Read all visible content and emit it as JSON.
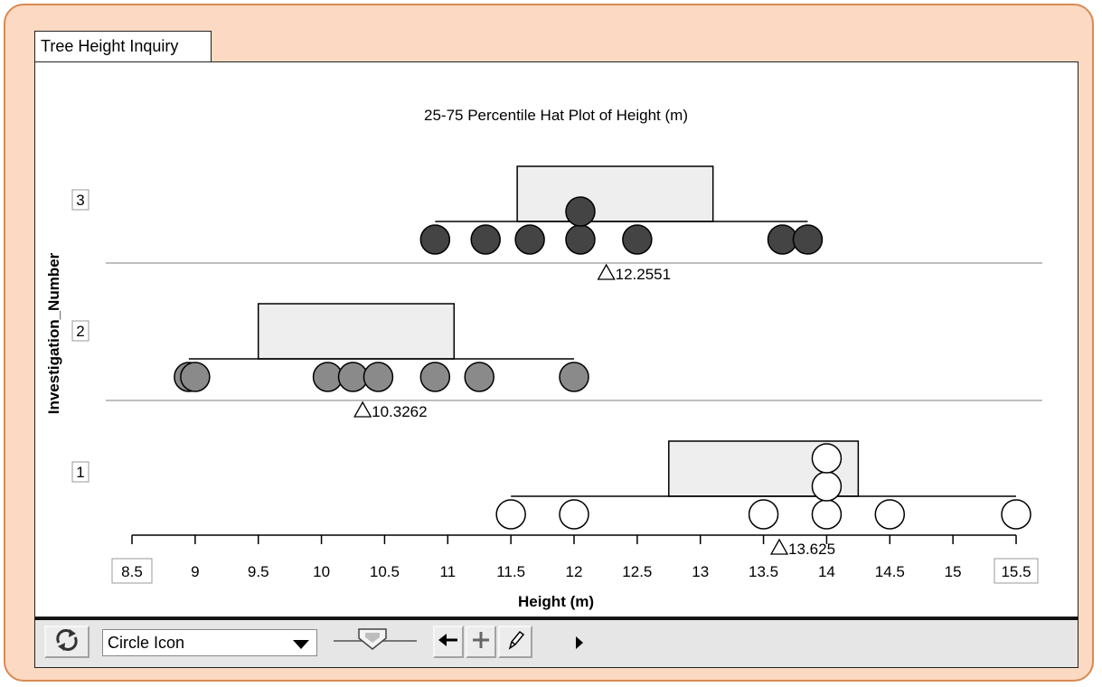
{
  "window": {
    "tab_title": "Tree Height Inquiry"
  },
  "chart_data": {
    "type": "scatter",
    "subtype": "dot plot with 25-75 percentile hat",
    "title": "25-75 Percentile Hat Plot of Height (m)",
    "xlabel": "Height (m)",
    "ylabel": "Investigation_Number",
    "xlim": [
      8.5,
      15.5
    ],
    "x_ticks": [
      "8.5",
      "9",
      "9.5",
      "10",
      "10.5",
      "11",
      "11.5",
      "12",
      "12.5",
      "13",
      "13.5",
      "14",
      "14.5",
      "15",
      "15.5"
    ],
    "grid": false,
    "groups": [
      {
        "name": "3",
        "fill": "#444444",
        "points": [
          10.9,
          11.3,
          11.65,
          12.05,
          12.05,
          12.5,
          13.65,
          13.85
        ],
        "hat": {
          "q1": 11.55,
          "q3": 13.1,
          "min": 10.9,
          "max": 13.85
        },
        "mean_label": "12.2551",
        "mean": 12.2551
      },
      {
        "name": "2",
        "fill": "#8a8a8a",
        "points": [
          8.95,
          9.0,
          10.05,
          10.25,
          10.45,
          10.9,
          11.25,
          12.0
        ],
        "hat": {
          "q1": 9.5,
          "q3": 11.05,
          "min": 8.95,
          "max": 12.0
        },
        "mean_label": "10.3262",
        "mean": 10.3262
      },
      {
        "name": "1",
        "fill": "#ffffff",
        "points": [
          11.5,
          12.0,
          13.5,
          14.0,
          14.0,
          14.0,
          14.5,
          15.5
        ],
        "hat": {
          "q1": 12.75,
          "q3": 14.25,
          "min": 11.5,
          "max": 15.5
        },
        "mean_label": "13.625",
        "mean": 13.625
      }
    ]
  },
  "toolbar": {
    "refresh_icon": "refresh-icon",
    "icon_select_value": "Circle Icon",
    "point_size_fraction": 0.45,
    "back_icon": "left-arrow-icon",
    "move_icon": "crosshair-icon",
    "pencil_icon": "pencil-icon",
    "more_icon": "play-triangle-icon"
  }
}
